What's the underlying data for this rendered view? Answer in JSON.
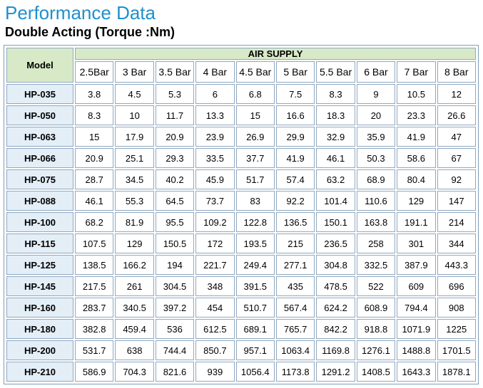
{
  "header": {
    "title": "Performance Data",
    "subtitle": "Double Acting  (Torque :Nm)"
  },
  "table": {
    "model_label": "Model",
    "group_label": "AIR SUPPLY",
    "columns": [
      "2.5Bar",
      "3 Bar",
      "3.5 Bar",
      "4 Bar",
      "4.5 Bar",
      "5 Bar",
      "5.5 Bar",
      "6 Bar",
      "7 Bar",
      "8 Bar"
    ],
    "rows": [
      {
        "model": "HP-035",
        "values": [
          "3.8",
          "4.5",
          "5.3",
          "6",
          "6.8",
          "7.5",
          "8.3",
          "9",
          "10.5",
          "12"
        ]
      },
      {
        "model": "HP-050",
        "values": [
          "8.3",
          "10",
          "11.7",
          "13.3",
          "15",
          "16.6",
          "18.3",
          "20",
          "23.3",
          "26.6"
        ]
      },
      {
        "model": "HP-063",
        "values": [
          "15",
          "17.9",
          "20.9",
          "23.9",
          "26.9",
          "29.9",
          "32.9",
          "35.9",
          "41.9",
          "47"
        ]
      },
      {
        "model": "HP-066",
        "values": [
          "20.9",
          "25.1",
          "29.3",
          "33.5",
          "37.7",
          "41.9",
          "46.1",
          "50.3",
          "58.6",
          "67"
        ]
      },
      {
        "model": "HP-075",
        "values": [
          "28.7",
          "34.5",
          "40.2",
          "45.9",
          "51.7",
          "57.4",
          "63.2",
          "68.9",
          "80.4",
          "92"
        ]
      },
      {
        "model": "HP-088",
        "values": [
          "46.1",
          "55.3",
          "64.5",
          "73.7",
          "83",
          "92.2",
          "101.4",
          "110.6",
          "129",
          "147"
        ]
      },
      {
        "model": "HP-100",
        "values": [
          "68.2",
          "81.9",
          "95.5",
          "109.2",
          "122.8",
          "136.5",
          "150.1",
          "163.8",
          "191.1",
          "214"
        ]
      },
      {
        "model": "HP-115",
        "values": [
          "107.5",
          "129",
          "150.5",
          "172",
          "193.5",
          "215",
          "236.5",
          "258",
          "301",
          "344"
        ]
      },
      {
        "model": "HP-125",
        "values": [
          "138.5",
          "166.2",
          "194",
          "221.7",
          "249.4",
          "277.1",
          "304.8",
          "332.5",
          "387.9",
          "443.3"
        ]
      },
      {
        "model": "HP-145",
        "values": [
          "217.5",
          "261",
          "304.5",
          "348",
          "391.5",
          "435",
          "478.5",
          "522",
          "609",
          "696"
        ]
      },
      {
        "model": "HP-160",
        "values": [
          "283.7",
          "340.5",
          "397.2",
          "454",
          "510.7",
          "567.4",
          "624.2",
          "608.9",
          "794.4",
          "908"
        ]
      },
      {
        "model": "HP-180",
        "values": [
          "382.8",
          "459.4",
          "536",
          "612.5",
          "689.1",
          "765.7",
          "842.2",
          "918.8",
          "1071.9",
          "1225"
        ]
      },
      {
        "model": "HP-200",
        "values": [
          "531.7",
          "638",
          "744.4",
          "850.7",
          "957.1",
          "1063.4",
          "1169.8",
          "1276.1",
          "1488.8",
          "1701.5"
        ]
      },
      {
        "model": "HP-210",
        "values": [
          "586.9",
          "704.3",
          "821.6",
          "939",
          "1056.4",
          "1173.8",
          "1291.2",
          "1408.5",
          "1643.3",
          "1878.1"
        ]
      }
    ]
  },
  "colors": {
    "title": "#1f8fcf",
    "header_fill": "#d8e9c8",
    "model_fill": "#e4eef7"
  }
}
